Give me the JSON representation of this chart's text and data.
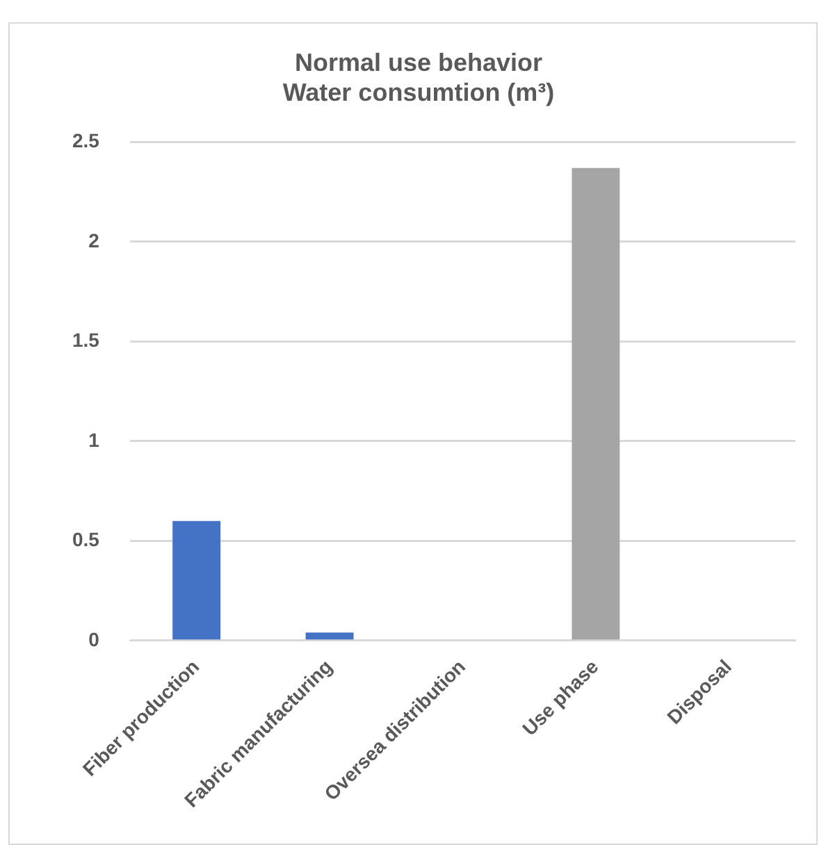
{
  "chart_data": {
    "type": "bar",
    "title": "Normal use behavior\nWater consumtion (m³)",
    "categories": [
      "Fiber production",
      "Fabric manufacturing",
      "Oversea distribution",
      "Use phase",
      "Disposal"
    ],
    "values": [
      0.6,
      0.04,
      0,
      2.37,
      0
    ],
    "colors": [
      "#4472c4",
      "#4472c4",
      "#4472c4",
      "#a5a5a5",
      "#a5a5a5"
    ],
    "ylim": [
      0,
      2.5
    ],
    "yticks": [
      0,
      0.5,
      1,
      1.5,
      2,
      2.5
    ],
    "grid": "y",
    "legend": false
  }
}
